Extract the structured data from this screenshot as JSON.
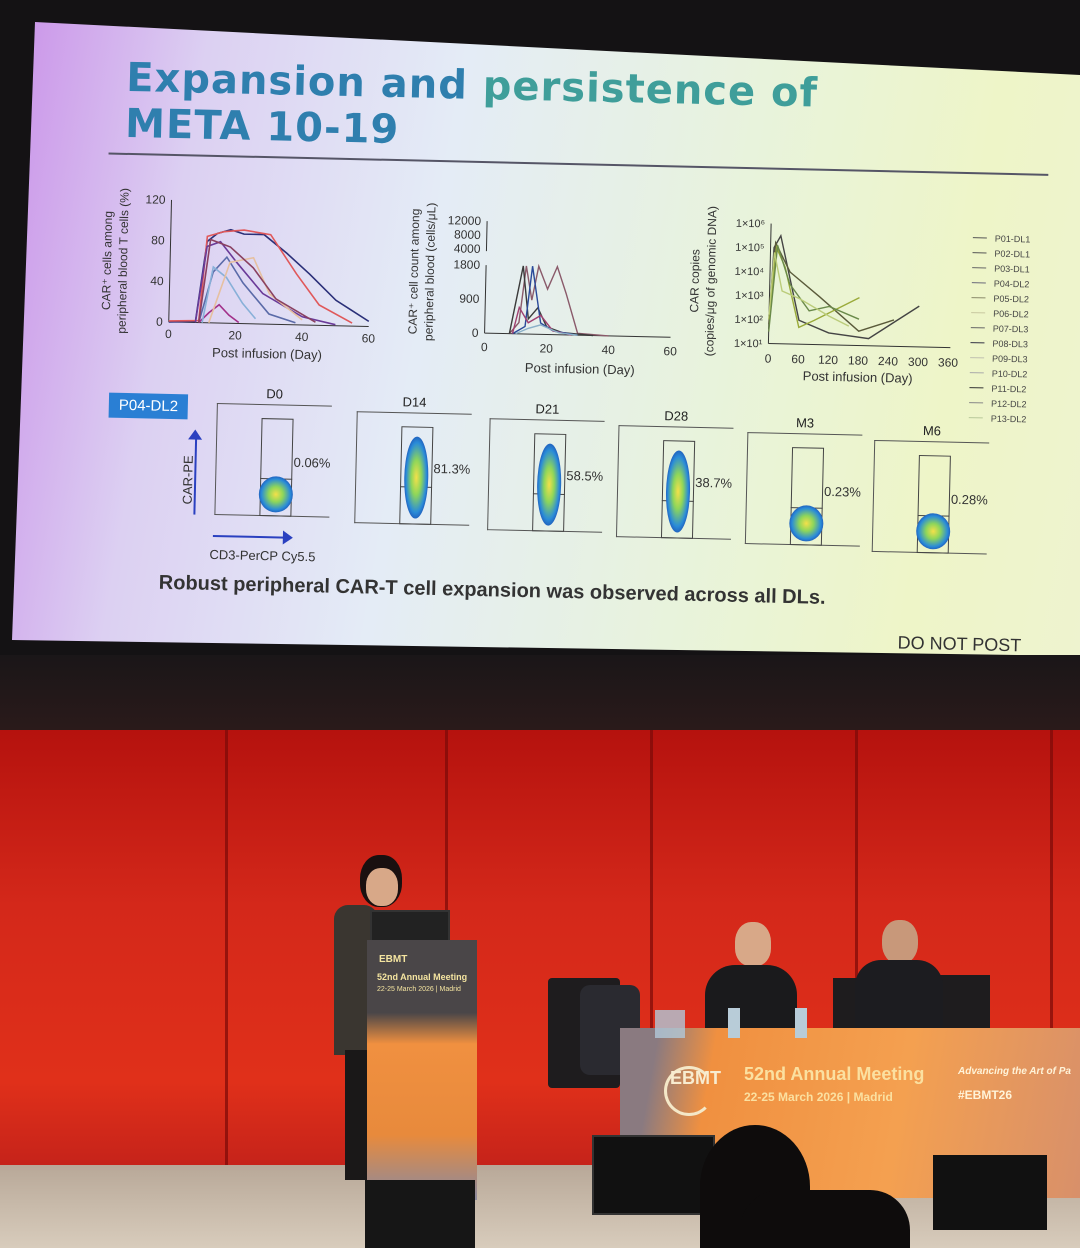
{
  "slide": {
    "title_line1_a": "Expansion and",
    "title_line1_b": "persistence of",
    "title_line2": "META 10-19",
    "chart1": {
      "ylabel_1": "CAR⁺ cells among",
      "ylabel_2": "peripheral blood T cells (%)",
      "xlabel": "Post infusion (Day)",
      "yticks": [
        "120",
        "80",
        "40",
        "0"
      ],
      "xticks": [
        "0",
        "20",
        "40",
        "60"
      ],
      "series": [
        [
          [
            0,
            0
          ],
          [
            8,
            1
          ],
          [
            11,
            80
          ],
          [
            14,
            88
          ],
          [
            18,
            92
          ],
          [
            22,
            88
          ],
          [
            28,
            88
          ],
          [
            35,
            70
          ],
          [
            42,
            50
          ],
          [
            50,
            25
          ],
          [
            55,
            15
          ],
          [
            60,
            5
          ]
        ],
        [
          [
            0,
            1
          ],
          [
            9,
            2
          ],
          [
            11,
            85
          ],
          [
            16,
            90
          ],
          [
            22,
            92
          ],
          [
            30,
            88
          ],
          [
            38,
            50
          ],
          [
            45,
            20
          ],
          [
            55,
            3
          ]
        ],
        [
          [
            8,
            0
          ],
          [
            11,
            75
          ],
          [
            15,
            80
          ],
          [
            20,
            60
          ],
          [
            28,
            30
          ],
          [
            40,
            8
          ],
          [
            50,
            1
          ]
        ],
        [
          [
            9,
            0
          ],
          [
            13,
            50
          ],
          [
            17,
            65
          ],
          [
            22,
            40
          ],
          [
            30,
            10
          ],
          [
            38,
            2
          ]
        ],
        [
          [
            9,
            0
          ],
          [
            12,
            10
          ],
          [
            15,
            18
          ],
          [
            18,
            8
          ],
          [
            21,
            1
          ]
        ],
        [
          [
            10,
            0
          ],
          [
            13,
            55
          ],
          [
            17,
            45
          ],
          [
            22,
            20
          ],
          [
            26,
            5
          ]
        ],
        [
          [
            12,
            0
          ],
          [
            18,
            60
          ],
          [
            25,
            65
          ],
          [
            30,
            30
          ],
          [
            40,
            5
          ]
        ],
        [
          [
            9,
            0
          ],
          [
            12,
            82
          ],
          [
            18,
            75
          ],
          [
            25,
            55
          ],
          [
            32,
            25
          ],
          [
            44,
            3
          ]
        ]
      ],
      "colors": [
        "#2a2f78",
        "#e0585a",
        "#6a3a98",
        "#5a6aa8",
        "#a2308a",
        "#88b0d8",
        "#e6c0a0",
        "#8a4060"
      ]
    },
    "chart2": {
      "ylabel_1": "CAR⁺ cell count among",
      "ylabel_2": "peripheral blood (cells/μL)",
      "xlabel": "Post infusion (Day)",
      "yticks": [
        "12000",
        "8000",
        "4000",
        "1800",
        "900",
        "0"
      ],
      "xticks": [
        "0",
        "20",
        "40",
        "60"
      ],
      "series": [
        [
          [
            8,
            0
          ],
          [
            11,
            300
          ],
          [
            13,
            1800
          ],
          [
            15,
            900
          ],
          [
            17,
            1800
          ],
          [
            20,
            1200
          ],
          [
            23,
            1800
          ],
          [
            26,
            1100
          ],
          [
            30,
            50
          ],
          [
            40,
            0
          ]
        ],
        [
          [
            8,
            0
          ],
          [
            12,
            1800
          ],
          [
            14,
            400
          ],
          [
            17,
            700
          ],
          [
            20,
            200
          ],
          [
            25,
            60
          ],
          [
            35,
            0
          ]
        ],
        [
          [
            9,
            0
          ],
          [
            13,
            200
          ],
          [
            15,
            1800
          ],
          [
            18,
            300
          ],
          [
            22,
            100
          ],
          [
            30,
            0
          ]
        ],
        [
          [
            9,
            0
          ],
          [
            11,
            700
          ],
          [
            14,
            300
          ],
          [
            18,
            500
          ],
          [
            22,
            100
          ],
          [
            28,
            0
          ]
        ],
        [
          [
            10,
            0
          ],
          [
            14,
            150
          ],
          [
            18,
            250
          ],
          [
            24,
            50
          ],
          [
            30,
            0
          ]
        ]
      ],
      "colors": [
        "#8a5a6a",
        "#3a3a3a",
        "#2a4a9a",
        "#a04070",
        "#8ab0c8"
      ]
    },
    "chart3": {
      "ylabel_1": "CAR copies",
      "ylabel_2": "(copies/μg of genomic DNA)",
      "xlabel": "Post infusion (Day)",
      "yticks": [
        "1×10⁶",
        "1×10⁵",
        "1×10⁴",
        "1×10³",
        "1×10²",
        "1×10¹"
      ],
      "xticks": [
        "0",
        "60",
        "120",
        "180",
        "240",
        "300",
        "360"
      ],
      "series": [
        [
          [
            0,
            1.6
          ],
          [
            7,
            5
          ],
          [
            20,
            5.5
          ],
          [
            60,
            2
          ],
          [
            120,
            1.5
          ],
          [
            200,
            1.3
          ],
          [
            300,
            2.7
          ]
        ],
        [
          [
            0,
            1.8
          ],
          [
            10,
            5.2
          ],
          [
            40,
            4
          ],
          [
            100,
            3
          ],
          [
            180,
            1.6
          ],
          [
            250,
            2.1
          ]
        ],
        [
          [
            0,
            2
          ],
          [
            12,
            5
          ],
          [
            30,
            4.2
          ],
          [
            60,
            1.7
          ],
          [
            90,
            2
          ],
          [
            180,
            3
          ]
        ],
        [
          [
            0,
            1.5
          ],
          [
            14,
            5.1
          ],
          [
            40,
            3.5
          ],
          [
            80,
            2.4
          ],
          [
            120,
            2.6
          ],
          [
            180,
            2.1
          ]
        ],
        [
          [
            0,
            2.2
          ],
          [
            8,
            4.8
          ],
          [
            25,
            3.2
          ],
          [
            60,
            2.9
          ],
          [
            120,
            2.2
          ],
          [
            160,
            1.8
          ]
        ]
      ],
      "colors": [
        "#444444",
        "#5a5a3a",
        "#9aaa3a",
        "#6a8a4a",
        "#bbcc7a"
      ]
    },
    "legend": [
      "P01-DL1",
      "P02-DL1",
      "P03-DL1",
      "P04-DL2",
      "P05-DL2",
      "P06-DL2",
      "P07-DL3",
      "P08-DL3",
      "P09-DL3",
      "P10-DL2",
      "P11-DL2",
      "P12-DL2",
      "P13-DL2"
    ],
    "legend_colors": [
      "#555",
      "#555",
      "#666",
      "#6a6a7a",
      "#8a8a6a",
      "#c8c8a0",
      "#666",
      "#334",
      "#c0c0b0",
      "#aaa",
      "#333",
      "#888",
      "#b8c89a"
    ],
    "patient_tag": "P04-DL2",
    "flow_yaxis": "CAR-PE",
    "flow_xaxis": "CD3-PerCP Cy5.5",
    "flow": [
      {
        "day": "D0",
        "pct": "0.06%",
        "value": 0.06
      },
      {
        "day": "D14",
        "pct": "81.3%",
        "value": 81.3
      },
      {
        "day": "D21",
        "pct": "58.5%",
        "value": 58.5
      },
      {
        "day": "D28",
        "pct": "38.7%",
        "value": 38.7
      },
      {
        "day": "M3",
        "pct": "0.23%",
        "value": 0.23
      },
      {
        "day": "M6",
        "pct": "0.28%",
        "value": 0.28
      }
    ],
    "conclusion": "Robust peripheral CAR-T cell expansion was observed across all DLs.",
    "watermark": "DO NOT POST"
  },
  "banner": {
    "logo": "EBMT",
    "meeting": "52nd Annual Meeting",
    "dates": "22-25 March 2026",
    "city": "Madrid",
    "tagline": "Advancing the Art of Pa",
    "hashtag": "#EBMT26"
  },
  "podium": {
    "logo": "EBMT",
    "meeting": "52nd Annual Meeting",
    "dates": "22-25 March 2026",
    "city": "Madrid"
  }
}
